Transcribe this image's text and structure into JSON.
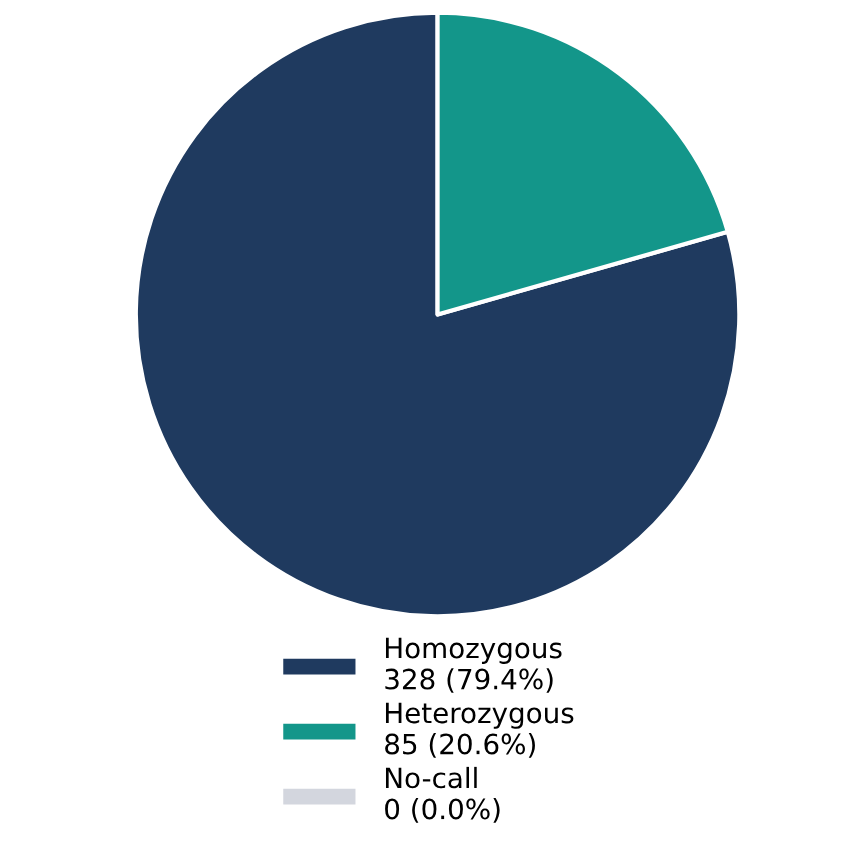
{
  "chart_data": {
    "type": "pie",
    "categories": [
      "Homozygous",
      "Heterozygous",
      "No-call"
    ],
    "values": [
      328,
      85,
      0
    ],
    "value_labels": [
      "328 (79.4%)",
      "85 (20.6%)",
      "0 (0.0%)"
    ],
    "colors": [
      "#1f3a5f",
      "#13968a",
      "#d3d6de"
    ],
    "legend": "bottom"
  }
}
